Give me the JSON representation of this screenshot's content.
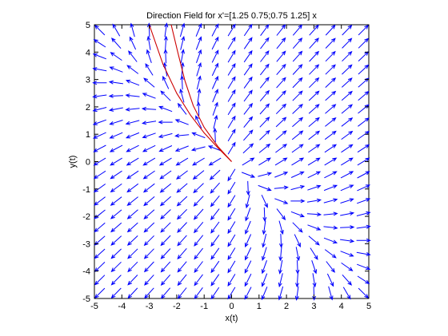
{
  "chart_data": {
    "type": "direction-field",
    "title": "Direction Field for x'=[1.25 0.75;0.75 1.25] x",
    "xlabel": "x(t)",
    "ylabel": "y(t)",
    "xlim": [
      -5,
      5
    ],
    "ylim": [
      -5,
      5
    ],
    "xticks": [
      -5,
      -4,
      -3,
      -2,
      -1,
      0,
      1,
      2,
      3,
      4,
      5
    ],
    "yticks": [
      -5,
      -4,
      -3,
      -2,
      -1,
      0,
      1,
      2,
      3,
      4,
      5
    ],
    "grid": false,
    "matrix": [
      [
        1.25,
        0.75
      ],
      [
        0.75,
        1.25
      ]
    ],
    "field": {
      "x_start": -4.8,
      "x_step": 0.6,
      "x_count": 17,
      "y_start": -4.8,
      "y_step": 0.48,
      "y_count": 21
    },
    "arrow_color": "#0000ff",
    "curve_color": "#cc0000",
    "curves": [
      {
        "x": [
          0,
          -0.5,
          -1.0,
          -1.5,
          -2.0,
          -2.5,
          -3.0
        ],
        "y": [
          0,
          0.5,
          1.05,
          1.7,
          2.5,
          3.55,
          5.0
        ]
      },
      {
        "x": [
          0,
          -0.5,
          -1.0,
          -1.4,
          -1.7,
          -1.95,
          -2.2
        ],
        "y": [
          0,
          0.55,
          1.25,
          2.05,
          2.95,
          3.95,
          5.0
        ]
      }
    ]
  }
}
